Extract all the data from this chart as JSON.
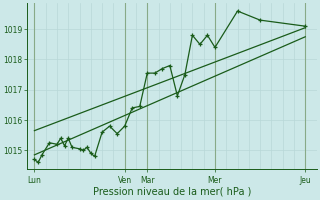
{
  "title": "",
  "xlabel": "Pression niveau de la mer( hPa )",
  "ylabel": "",
  "bg_color": "#cce8e8",
  "grid_minor_color": "#b8d8d8",
  "grid_major_color": "#88aa88",
  "line_color": "#1a5c1a",
  "tick_color": "#1a5c1a",
  "label_color": "#1a5c1a",
  "ylim": [
    1014.4,
    1019.85
  ],
  "yticks": [
    1015,
    1016,
    1017,
    1018,
    1019
  ],
  "xlim": [
    -8,
    300
  ],
  "day_ticks_x": [
    0,
    96,
    120,
    192,
    288
  ],
  "day_labels": [
    "Lun",
    "Ven",
    "Mar",
    "Mer",
    "Jeu"
  ],
  "series1_x": [
    0,
    4,
    8,
    16,
    24,
    28,
    32,
    36,
    40,
    48,
    52,
    56,
    60,
    64,
    72,
    80,
    88,
    96,
    104,
    112,
    120,
    128,
    136,
    144,
    152,
    160,
    168,
    176,
    184,
    192,
    216,
    240,
    288
  ],
  "series1_y": [
    1014.7,
    1014.6,
    1014.85,
    1015.25,
    1015.2,
    1015.4,
    1015.15,
    1015.4,
    1015.1,
    1015.05,
    1015.0,
    1015.1,
    1014.9,
    1014.8,
    1015.6,
    1015.8,
    1015.55,
    1015.8,
    1016.4,
    1016.45,
    1017.55,
    1017.55,
    1017.7,
    1017.8,
    1016.8,
    1017.5,
    1018.8,
    1018.5,
    1018.8,
    1018.4,
    1019.6,
    1019.3,
    1019.1
  ],
  "trend_x": [
    0,
    288
  ],
  "trend_y": [
    1014.85,
    1018.75
  ],
  "trend2_x": [
    0,
    288
  ],
  "trend2_y": [
    1015.65,
    1019.05
  ],
  "minor_grid_x_positions": [
    0,
    12,
    24,
    36,
    48,
    60,
    72,
    84,
    96,
    108,
    120,
    132,
    144,
    156,
    168,
    180,
    192,
    204,
    216,
    228,
    240,
    252,
    264,
    276,
    288
  ],
  "major_grid_x_positions": [
    0,
    96,
    120,
    192,
    288
  ],
  "minor_grid_y_positions": [
    1015,
    1016,
    1017,
    1018,
    1019
  ]
}
